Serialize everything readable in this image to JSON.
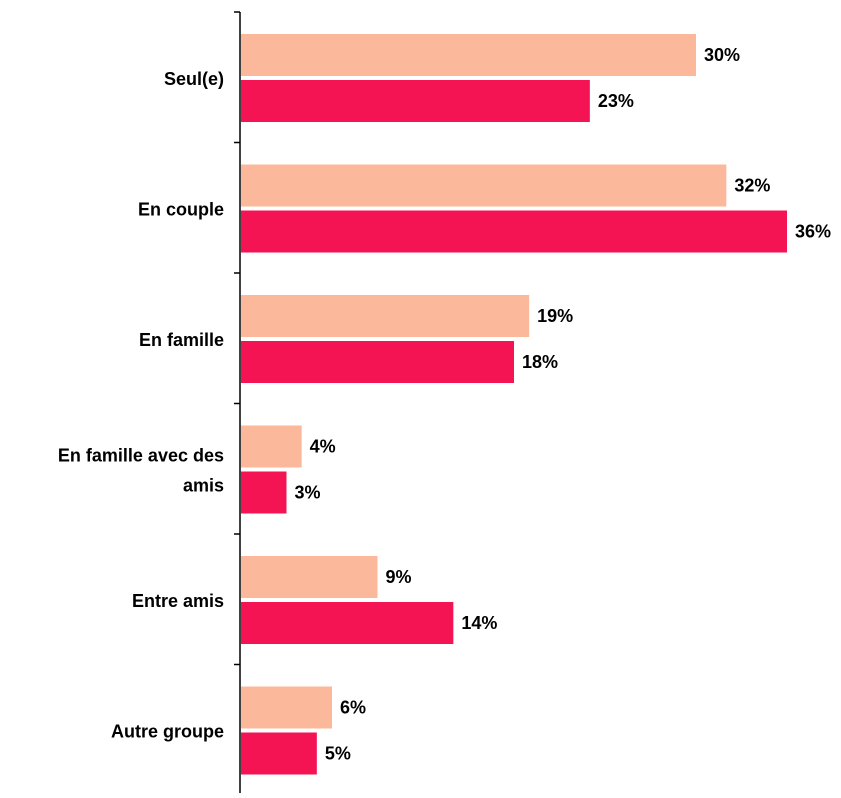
{
  "chart_data": {
    "type": "bar",
    "orientation": "horizontal",
    "categories": [
      [
        "Seul(e)"
      ],
      [
        "En couple"
      ],
      [
        "En famille"
      ],
      [
        "En famille avec des",
        "amis"
      ],
      [
        "Entre amis"
      ],
      [
        "Autre groupe"
      ]
    ],
    "series": [
      {
        "values": [
          30,
          32,
          19,
          4,
          9,
          6
        ],
        "labels": [
          "30%",
          "32%",
          "19%",
          "4%",
          "9%",
          "6%"
        ],
        "color": "#FBB89A"
      },
      {
        "values": [
          23,
          36,
          18,
          3,
          14,
          5
        ],
        "labels": [
          "23%",
          "36%",
          "18%",
          "3%",
          "14%",
          "5%"
        ],
        "color": "#F41454"
      }
    ],
    "xlim": [
      0,
      36
    ],
    "grid": false,
    "legend": "none"
  }
}
